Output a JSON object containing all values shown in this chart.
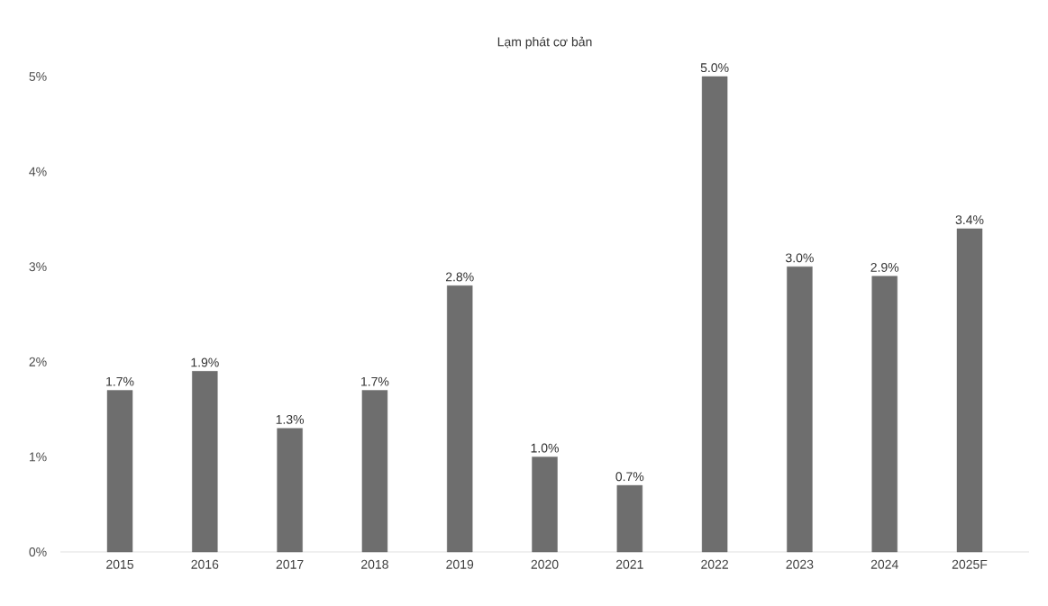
{
  "chart_data": {
    "type": "bar",
    "title": "Lạm phát cơ bản",
    "categories": [
      "2015",
      "2016",
      "2017",
      "2018",
      "2019",
      "2020",
      "2021",
      "2022",
      "2023",
      "2024",
      "2025F"
    ],
    "values": [
      1.7,
      1.9,
      1.3,
      1.7,
      2.8,
      1.0,
      0.7,
      5.0,
      3.0,
      2.9,
      3.4
    ],
    "value_labels": [
      "1.7%",
      "1.9%",
      "1.3%",
      "1.7%",
      "2.8%",
      "1.0%",
      "0.7%",
      "5.0%",
      "3.0%",
      "2.9%",
      "3.4%"
    ],
    "color": "#6e6e6e",
    "ylim": [
      0,
      5
    ],
    "yticks": [
      {
        "value": 0,
        "label": "0%"
      },
      {
        "value": 1,
        "label": "1%"
      },
      {
        "value": 2,
        "label": "2%"
      },
      {
        "value": 3,
        "label": "3%"
      },
      {
        "value": 4,
        "label": "4%"
      },
      {
        "value": 5,
        "label": "5%"
      }
    ],
    "grid": false
  }
}
